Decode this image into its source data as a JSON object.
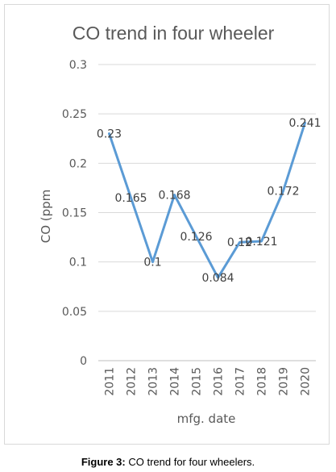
{
  "chart_data": {
    "type": "line",
    "title": "CO trend in four wheeler",
    "xlabel": "mfg. date",
    "ylabel": "CO (ppm",
    "categories": [
      "2011",
      "2012",
      "2013",
      "2014",
      "2015",
      "2016",
      "2017",
      "2018",
      "2019",
      "2020"
    ],
    "series": [
      {
        "values": [
          0.23,
          0.165,
          0.1,
          0.168,
          0.126,
          0.084,
          0.12,
          0.121,
          0.172,
          0.241
        ],
        "labels": [
          "0.23",
          "0.165",
          "0.1",
          "0.168",
          "0.126",
          "0.084",
          "0.12",
          "0.121",
          "0.172",
          "0.241"
        ]
      }
    ],
    "ylim": [
      0,
      0.3
    ],
    "yticks": [
      "0",
      "0.05",
      "0.1",
      "0.15",
      "0.2",
      "0.25",
      "0.3"
    ],
    "grid": true,
    "line_color": "#5B9BD5"
  },
  "caption": {
    "label": "Figure 3:",
    "text": " CO trend for four wheelers."
  }
}
